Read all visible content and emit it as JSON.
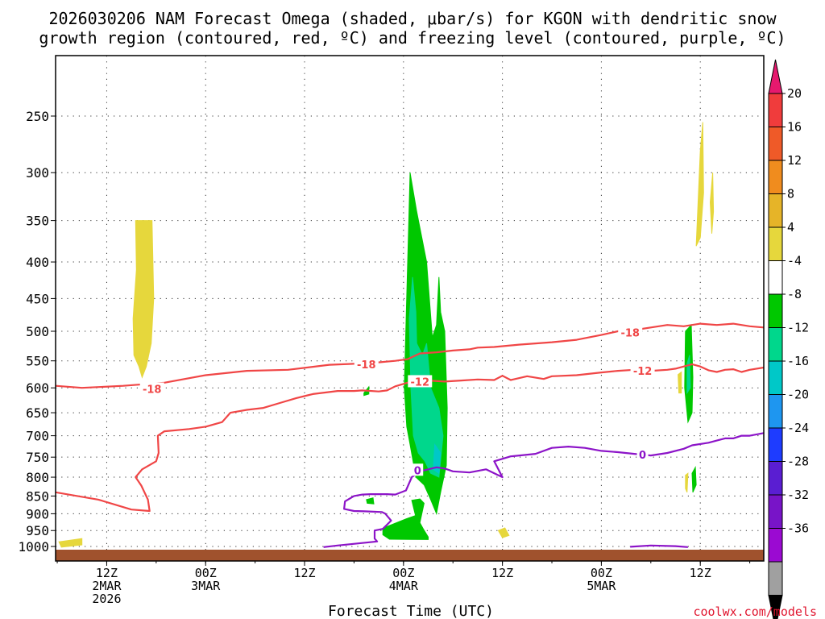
{
  "chart_data": {
    "type": "heatmap",
    "title_line1": "2026030206 NAM Forecast Omega (shaded, μbar/s) for KGON with dendritic snow",
    "title_line2": "growth region (contoured, red, ºC) and freezing level (contoured, purple, ºC)",
    "xlabel": "Forecast Time (UTC)",
    "credit": "coolwx.com/models",
    "y_ticks": [
      "250",
      "300",
      "350",
      "400",
      "450",
      "500",
      "550",
      "600",
      "650",
      "700",
      "750",
      "800",
      "850",
      "900",
      "950",
      "1000"
    ],
    "x_ticks": [
      {
        "hour": 6,
        "lines": [
          "12Z",
          "2MAR",
          "2026"
        ]
      },
      {
        "hour": 18,
        "lines": [
          "00Z",
          "3MAR"
        ]
      },
      {
        "hour": 30,
        "lines": [
          "12Z"
        ]
      },
      {
        "hour": 42,
        "lines": [
          "00Z",
          "4MAR"
        ]
      },
      {
        "hour": 54,
        "lines": [
          "12Z"
        ]
      },
      {
        "hour": 66,
        "lines": [
          "00Z",
          "5MAR"
        ]
      },
      {
        "hour": 78,
        "lines": [
          "12Z"
        ]
      }
    ],
    "colorbar": {
      "labels": [
        "20",
        "16",
        "12",
        "8",
        "4",
        "-4",
        "-8",
        "-12",
        "-16",
        "-20",
        "-24",
        "-28",
        "-32",
        "-36"
      ],
      "colors": [
        "#e6196e",
        "#f03c3c",
        "#ef5a28",
        "#f08c1e",
        "#e6b428",
        "#e6d73c",
        "#ffffff",
        "#00c800",
        "#00d78c",
        "#00c8c8",
        "#1e96f0",
        "#1e3cff",
        "#5a1ed2",
        "#7814c8",
        "#9b0ad2",
        "#a0a0a0",
        "#000000"
      ]
    },
    "shading": [
      {
        "level": 4,
        "color": "#e6d73c",
        "regions": [
          [
            [
              9.5,
              350
            ],
            [
              11.5,
              350
            ],
            [
              11.7,
              450
            ],
            [
              11.4,
              520
            ],
            [
              10.8,
              560
            ],
            [
              10.3,
              580
            ],
            [
              9.9,
              560
            ],
            [
              9.3,
              540
            ],
            [
              9.2,
              480
            ],
            [
              9.6,
              410
            ]
          ],
          [
            [
              0.2,
              985
            ],
            [
              3,
              975
            ],
            [
              3,
              995
            ],
            [
              0.5,
              1002
            ]
          ],
          [
            [
              77.5,
              380
            ],
            [
              78,
              280
            ],
            [
              78.3,
              255
            ],
            [
              78.4,
              320
            ],
            [
              78,
              370
            ]
          ],
          [
            [
              79.2,
              330
            ],
            [
              79.5,
              300
            ],
            [
              79.6,
              340
            ],
            [
              79.4,
              365
            ]
          ],
          [
            [
              75.3,
              575
            ],
            [
              75.7,
              570
            ],
            [
              75.7,
              610
            ],
            [
              75.4,
              610
            ]
          ],
          [
            [
              76.2,
              795
            ],
            [
              76.5,
              790
            ],
            [
              76.4,
              840
            ],
            [
              76.2,
              830
            ]
          ],
          [
            [
              53.5,
              950
            ],
            [
              54.3,
              942
            ],
            [
              54.8,
              965
            ],
            [
              54,
              972
            ]
          ]
        ]
      },
      {
        "level": -8,
        "color": "#00c800",
        "regions": [
          [
            [
              42.1,
              600
            ],
            [
              42.8,
              300
            ],
            [
              43.6,
              340
            ],
            [
              44.8,
              400
            ],
            [
              45.5,
              510
            ],
            [
              46,
              490
            ],
            [
              46.3,
              420
            ],
            [
              46.5,
              470
            ],
            [
              47,
              500
            ],
            [
              47.3,
              640
            ],
            [
              47.2,
              770
            ],
            [
              46.5,
              840
            ],
            [
              46,
              900
            ],
            [
              45.3,
              860
            ],
            [
              44.5,
              820
            ],
            [
              43.5,
              800
            ],
            [
              42.8,
              720
            ],
            [
              42.4,
              680
            ]
          ],
          [
            [
              39.5,
              943
            ],
            [
              42.3,
              915
            ],
            [
              43.5,
              905
            ],
            [
              44.4,
              945
            ],
            [
              45,
              970
            ],
            [
              45,
              978
            ],
            [
              40.3,
              977
            ],
            [
              39.5,
              963
            ]
          ],
          [
            [
              43,
              862
            ],
            [
              44,
              858
            ],
            [
              44.5,
              870
            ],
            [
              44,
              925
            ],
            [
              43.6,
              920
            ]
          ],
          [
            [
              37.2,
              610
            ],
            [
              37.8,
              598
            ],
            [
              37.8,
              612
            ],
            [
              37.2,
              615
            ]
          ],
          [
            [
              37.5,
              860
            ],
            [
              38.3,
              855
            ],
            [
              38.4,
              872
            ],
            [
              37.6,
              870
            ]
          ],
          [
            [
              76.2,
              500
            ],
            [
              76.9,
              490
            ],
            [
              77.1,
              580
            ],
            [
              77,
              650
            ],
            [
              76.5,
              670
            ],
            [
              76.1,
              600
            ]
          ],
          [
            [
              77,
              790
            ],
            [
              77.4,
              775
            ],
            [
              77.5,
              820
            ],
            [
              77.1,
              840
            ]
          ]
        ]
      },
      {
        "level": -12,
        "color": "#00d78c",
        "regions": [
          [
            [
              42.7,
              480
            ],
            [
              43.1,
              420
            ],
            [
              43.5,
              470
            ],
            [
              43.6,
              520
            ],
            [
              44.3,
              540
            ],
            [
              44.8,
              520
            ],
            [
              45.3,
              600
            ],
            [
              46.3,
              640
            ],
            [
              46.8,
              700
            ],
            [
              46.3,
              800
            ],
            [
              45.3,
              790
            ],
            [
              44.6,
              760
            ],
            [
              43.8,
              740
            ],
            [
              43.2,
              700
            ],
            [
              42.9,
              600
            ]
          ],
          [
            [
              76.4,
              555
            ],
            [
              76.7,
              540
            ],
            [
              76.8,
              600
            ],
            [
              76.4,
              610
            ]
          ]
        ]
      },
      {
        "level": -16,
        "color": "#00c8c8",
        "regions": [
          [
            [
              45.8,
              720
            ],
            [
              46.5,
              740
            ],
            [
              46.3,
              790
            ],
            [
              45.6,
              780
            ]
          ]
        ]
      }
    ],
    "contours": [
      {
        "label": "-18",
        "color": "#f04646",
        "points": [
          [
            -0.2,
            596
          ],
          [
            3,
            600
          ],
          [
            8,
            596
          ],
          [
            13,
            590
          ],
          [
            18,
            576
          ],
          [
            23,
            568
          ],
          [
            28,
            566
          ],
          [
            33,
            557
          ],
          [
            38,
            554
          ],
          [
            41,
            550
          ],
          [
            42.5,
            547
          ],
          [
            44,
            537
          ],
          [
            46,
            535
          ],
          [
            48,
            532
          ],
          [
            50,
            530
          ],
          [
            51,
            527
          ],
          [
            53,
            526
          ],
          [
            56,
            522
          ],
          [
            60,
            518
          ],
          [
            63,
            514
          ],
          [
            66,
            506
          ],
          [
            68,
            500
          ],
          [
            70,
            498
          ],
          [
            72,
            494
          ],
          [
            74,
            490
          ],
          [
            76,
            492
          ],
          [
            78,
            488
          ],
          [
            80,
            490
          ],
          [
            82,
            488
          ],
          [
            84,
            492
          ],
          [
            85.7,
            494
          ]
        ],
        "labels_at": [
          [
            11.5,
            602
          ],
          [
            37.5,
            556
          ],
          [
            69.5,
            502
          ]
        ]
      },
      {
        "label": "-12",
        "color": "#f04646",
        "points": [
          [
            -0.2,
            840
          ],
          [
            5,
            860
          ],
          [
            9,
            888
          ],
          [
            11.2,
            892
          ],
          [
            11,
            860
          ],
          [
            10.2,
            822
          ],
          [
            9.5,
            800
          ],
          [
            10.3,
            780
          ],
          [
            12,
            760
          ],
          [
            12.3,
            740
          ],
          [
            12.2,
            700
          ],
          [
            13,
            690
          ],
          [
            16,
            685
          ],
          [
            18,
            680
          ],
          [
            20,
            670
          ],
          [
            21,
            650
          ],
          [
            23,
            644
          ],
          [
            25,
            640
          ],
          [
            27,
            630
          ],
          [
            29,
            620
          ],
          [
            31,
            612
          ],
          [
            34,
            606
          ],
          [
            36,
            606
          ],
          [
            37,
            605
          ],
          [
            39,
            607
          ],
          [
            40,
            605
          ],
          [
            41,
            597
          ],
          [
            42.5,
            590
          ],
          [
            45,
            586
          ],
          [
            47,
            588
          ],
          [
            49,
            586
          ],
          [
            51,
            584
          ],
          [
            53,
            585
          ],
          [
            54,
            577
          ],
          [
            55,
            585
          ],
          [
            57,
            578
          ],
          [
            59,
            583
          ],
          [
            60,
            578
          ],
          [
            63,
            576
          ],
          [
            66,
            571
          ],
          [
            68,
            568
          ],
          [
            70,
            566
          ],
          [
            72,
            568
          ],
          [
            74,
            566
          ],
          [
            75,
            564
          ],
          [
            76,
            560
          ],
          [
            77,
            556
          ],
          [
            78,
            560
          ],
          [
            79,
            567
          ],
          [
            80,
            570
          ],
          [
            81,
            566
          ],
          [
            82,
            565
          ],
          [
            83,
            570
          ],
          [
            84,
            566
          ],
          [
            85.7,
            562
          ]
        ],
        "labels_at": [
          [
            44,
            588
          ],
          [
            71,
            568
          ]
        ]
      },
      {
        "label": "0",
        "color": "#8c14c8",
        "points": [
          [
            32.3,
            1002
          ],
          [
            34,
            997
          ],
          [
            37,
            989
          ],
          [
            38.8,
            984
          ],
          [
            38.5,
            975
          ],
          [
            38.5,
            950
          ],
          [
            39.5,
            945
          ],
          [
            40.5,
            920
          ],
          [
            39.8,
            900
          ],
          [
            39.4,
            895
          ],
          [
            37.3,
            893
          ],
          [
            36,
            892
          ],
          [
            34.8,
            886
          ],
          [
            34.9,
            865
          ],
          [
            36,
            850
          ],
          [
            37,
            846
          ],
          [
            38,
            845
          ],
          [
            40,
            845
          ],
          [
            41,
            846
          ],
          [
            42.3,
            835
          ],
          [
            43,
            800
          ],
          [
            44,
            785
          ],
          [
            46,
            775
          ],
          [
            47,
            778
          ],
          [
            48,
            785
          ],
          [
            50,
            788
          ],
          [
            52,
            780
          ],
          [
            53.5,
            795
          ],
          [
            54,
            800
          ],
          [
            53,
            760
          ],
          [
            55,
            748
          ],
          [
            58,
            742
          ],
          [
            60,
            728
          ],
          [
            62,
            725
          ],
          [
            64,
            728
          ],
          [
            66,
            735
          ],
          [
            68,
            738
          ],
          [
            70,
            742
          ],
          [
            72,
            746
          ],
          [
            74,
            740
          ],
          [
            76,
            730
          ],
          [
            77,
            722
          ],
          [
            79,
            716
          ],
          [
            81,
            706
          ],
          [
            82,
            706
          ],
          [
            83,
            700
          ],
          [
            84,
            700
          ],
          [
            85.7,
            694
          ]
        ],
        "labels_at": [
          [
            43.7,
            782
          ],
          [
            71,
            744
          ]
        ]
      },
      {
        "label": "",
        "color": "#8c14c8",
        "points": [
          [
            69.5,
            1001
          ],
          [
            72,
            997
          ],
          [
            75,
            999
          ],
          [
            76.5,
            1002
          ]
        ],
        "labels_at": []
      }
    ]
  }
}
